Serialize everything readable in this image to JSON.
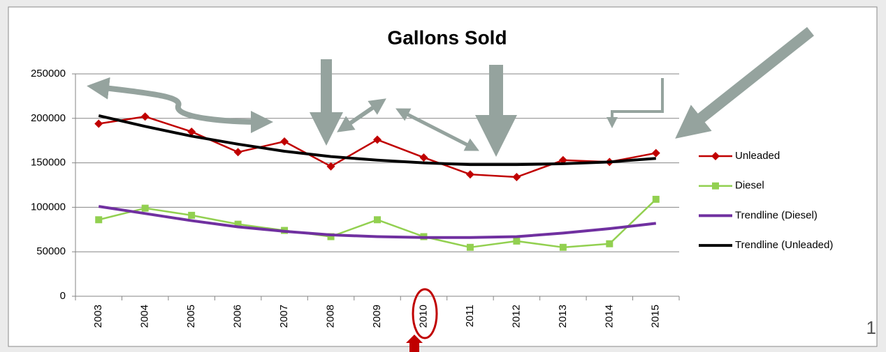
{
  "chart_data": {
    "type": "line",
    "title": "Gallons Sold",
    "categories": [
      "2003",
      "2004",
      "2005",
      "2006",
      "2007",
      "2008",
      "2009",
      "2010",
      "2011",
      "2012",
      "2013",
      "2014",
      "2015"
    ],
    "series": [
      {
        "name": "Unleaded",
        "color": "#c00000",
        "marker": "diamond",
        "values": [
          194000,
          202000,
          185000,
          162000,
          174000,
          146000,
          176000,
          156000,
          137000,
          134000,
          153000,
          151000,
          161000
        ]
      },
      {
        "name": "Diesel",
        "color": "#92d050",
        "marker": "square",
        "values": [
          86000,
          99000,
          91000,
          81000,
          74000,
          67000,
          86000,
          67000,
          55000,
          62000,
          55000,
          59000,
          109000
        ]
      },
      {
        "name": "Trendline (Diesel)",
        "color": "#7030a0",
        "marker": "none",
        "values": [
          101000,
          93000,
          85000,
          78000,
          73000,
          69000,
          67000,
          66000,
          66000,
          67000,
          71000,
          76000,
          82000
        ]
      },
      {
        "name": "Trendline (Unleaded)",
        "color": "#000000",
        "marker": "none",
        "values": [
          203000,
          191000,
          180000,
          171000,
          163000,
          157000,
          153000,
          150000,
          148000,
          148000,
          149000,
          151000,
          155000
        ]
      }
    ],
    "ylim": [
      0,
      250000
    ],
    "yticks": [
      0,
      50000,
      100000,
      150000,
      200000,
      250000
    ],
    "grid": true,
    "legend": "right"
  },
  "slide_number": "1"
}
